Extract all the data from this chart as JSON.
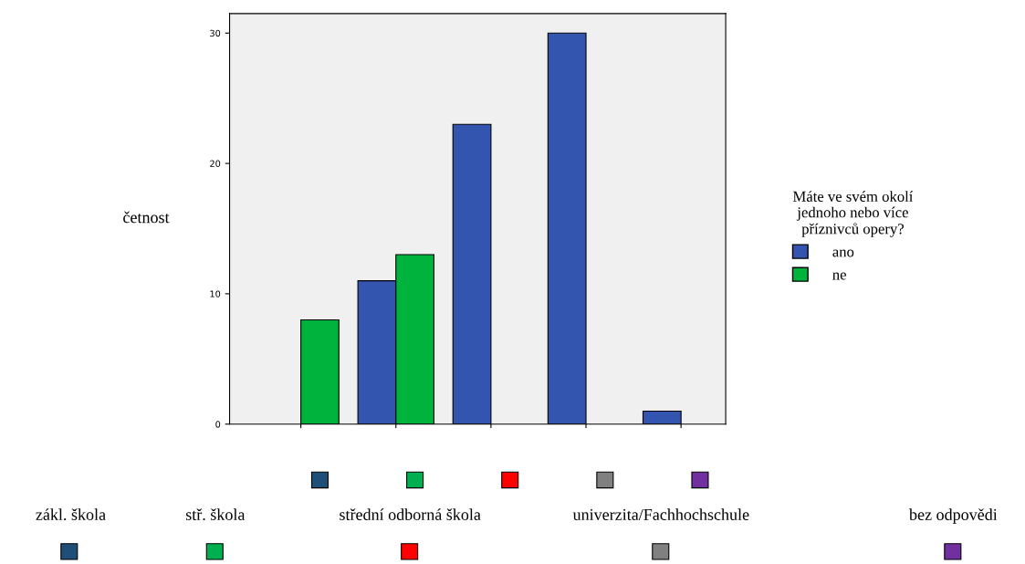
{
  "chart_data": {
    "type": "bar",
    "categories": [
      null,
      null,
      null,
      null,
      null
    ],
    "annotations": [
      "zákl. škola",
      "stř. škola",
      "střední odborná škola",
      "univerzita/Fachhochschule",
      "bez odpovědi"
    ],
    "series": [
      {
        "name": "ano",
        "color": "#3355b0",
        "values": [
          0,
          11,
          23,
          30,
          1
        ]
      },
      {
        "name": "ne",
        "color": "#00b33c",
        "values": [
          8,
          13,
          0,
          0,
          0
        ]
      }
    ],
    "ylabel": "četnost",
    "legend_title": "Máte ve svém okolí\njednoho nebo více\npříznivců opery?",
    "ylim": [
      0,
      31.5
    ],
    "yticks": [
      0,
      10,
      20,
      30
    ],
    "grid": false,
    "legend": "right"
  }
}
